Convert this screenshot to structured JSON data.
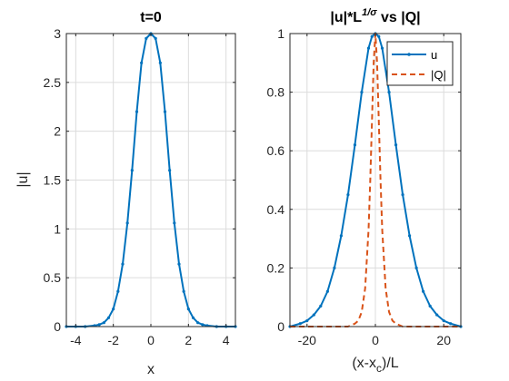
{
  "colors": {
    "u": "#0072bd",
    "Q": "#d95319",
    "axis": "#262626",
    "grid": "#dcdcdc"
  },
  "chart_data": [
    {
      "type": "line",
      "title": "t=0",
      "xlabel": "x",
      "ylabel": "|u|",
      "xlim": [
        -4.5,
        4.5
      ],
      "ylim": [
        0,
        3
      ],
      "xticks": [
        -4,
        -2,
        0,
        2,
        4
      ],
      "xtick_labels": [
        "-4",
        "-2",
        "0",
        "2",
        "4"
      ],
      "yticks": [
        0,
        0.5,
        1,
        1.5,
        2,
        2.5,
        3
      ],
      "ytick_labels": [
        "0",
        "0.5",
        "1",
        "1.5",
        "2",
        "2.5",
        "3"
      ],
      "grid": true,
      "legend": null,
      "series": [
        {
          "marker": "dot",
          "x": [
            -4.5,
            -4.0,
            -3.5,
            -3.0,
            -2.75,
            -2.5,
            -2.25,
            -2.0,
            -1.75,
            -1.5,
            -1.25,
            -1.0,
            -0.75,
            -0.5,
            -0.25,
            0.0,
            0.25,
            0.5,
            0.75,
            1.0,
            1.25,
            1.5,
            1.75,
            2.0,
            2.25,
            2.5,
            2.75,
            3.0,
            3.5,
            4.0,
            4.5
          ],
          "y": [
            0.0,
            0.0,
            0.0,
            0.01,
            0.02,
            0.04,
            0.09,
            0.18,
            0.36,
            0.64,
            1.06,
            1.6,
            2.2,
            2.7,
            2.95,
            3.0,
            2.95,
            2.7,
            2.2,
            1.6,
            1.06,
            0.64,
            0.36,
            0.18,
            0.09,
            0.04,
            0.02,
            0.01,
            0.0,
            0.0,
            0.0
          ]
        }
      ]
    },
    {
      "type": "line",
      "title": "|u|*L",
      "title_sup": "1/σ",
      "title_suffix": " vs |Q|",
      "xlabel": "(x-x",
      "xlabel_sub": "c",
      "xlabel_suffix": ")/L",
      "ylabel": "",
      "xlim": [
        -25,
        25
      ],
      "ylim": [
        0,
        1
      ],
      "xticks": [
        -20,
        0,
        20
      ],
      "xtick_labels": [
        "-20",
        "0",
        "20"
      ],
      "yticks": [
        0,
        0.2,
        0.4,
        0.6,
        0.8,
        1
      ],
      "ytick_labels": [
        "0",
        "0.2",
        "0.4",
        "0.6",
        "0.8",
        "1"
      ],
      "grid": true,
      "legend": "top-right",
      "series": [
        {
          "name": "u",
          "marker": "dot",
          "x": [
            -25,
            -22,
            -20,
            -18,
            -16,
            -14,
            -12,
            -10,
            -8,
            -6,
            -4,
            -2,
            -1,
            0,
            1,
            2,
            4,
            6,
            8,
            10,
            12,
            14,
            16,
            18,
            20,
            22,
            25
          ],
          "y": [
            0.0,
            0.01,
            0.02,
            0.04,
            0.07,
            0.12,
            0.2,
            0.31,
            0.45,
            0.62,
            0.8,
            0.95,
            0.99,
            1.0,
            0.99,
            0.95,
            0.8,
            0.62,
            0.45,
            0.31,
            0.2,
            0.12,
            0.07,
            0.04,
            0.02,
            0.01,
            0.0
          ]
        },
        {
          "name": "|Q|",
          "style": "dashed",
          "x": [
            -25,
            -8,
            -6,
            -5,
            -4,
            -3,
            -2,
            -1.5,
            -1,
            -0.5,
            0,
            0.5,
            1,
            1.5,
            2,
            3,
            4,
            5,
            6,
            8,
            25
          ],
          "y": [
            0.0,
            0.0,
            0.01,
            0.02,
            0.05,
            0.13,
            0.33,
            0.5,
            0.7,
            0.9,
            1.0,
            0.9,
            0.7,
            0.5,
            0.33,
            0.13,
            0.05,
            0.02,
            0.01,
            0.0,
            0.0
          ]
        }
      ]
    }
  ]
}
